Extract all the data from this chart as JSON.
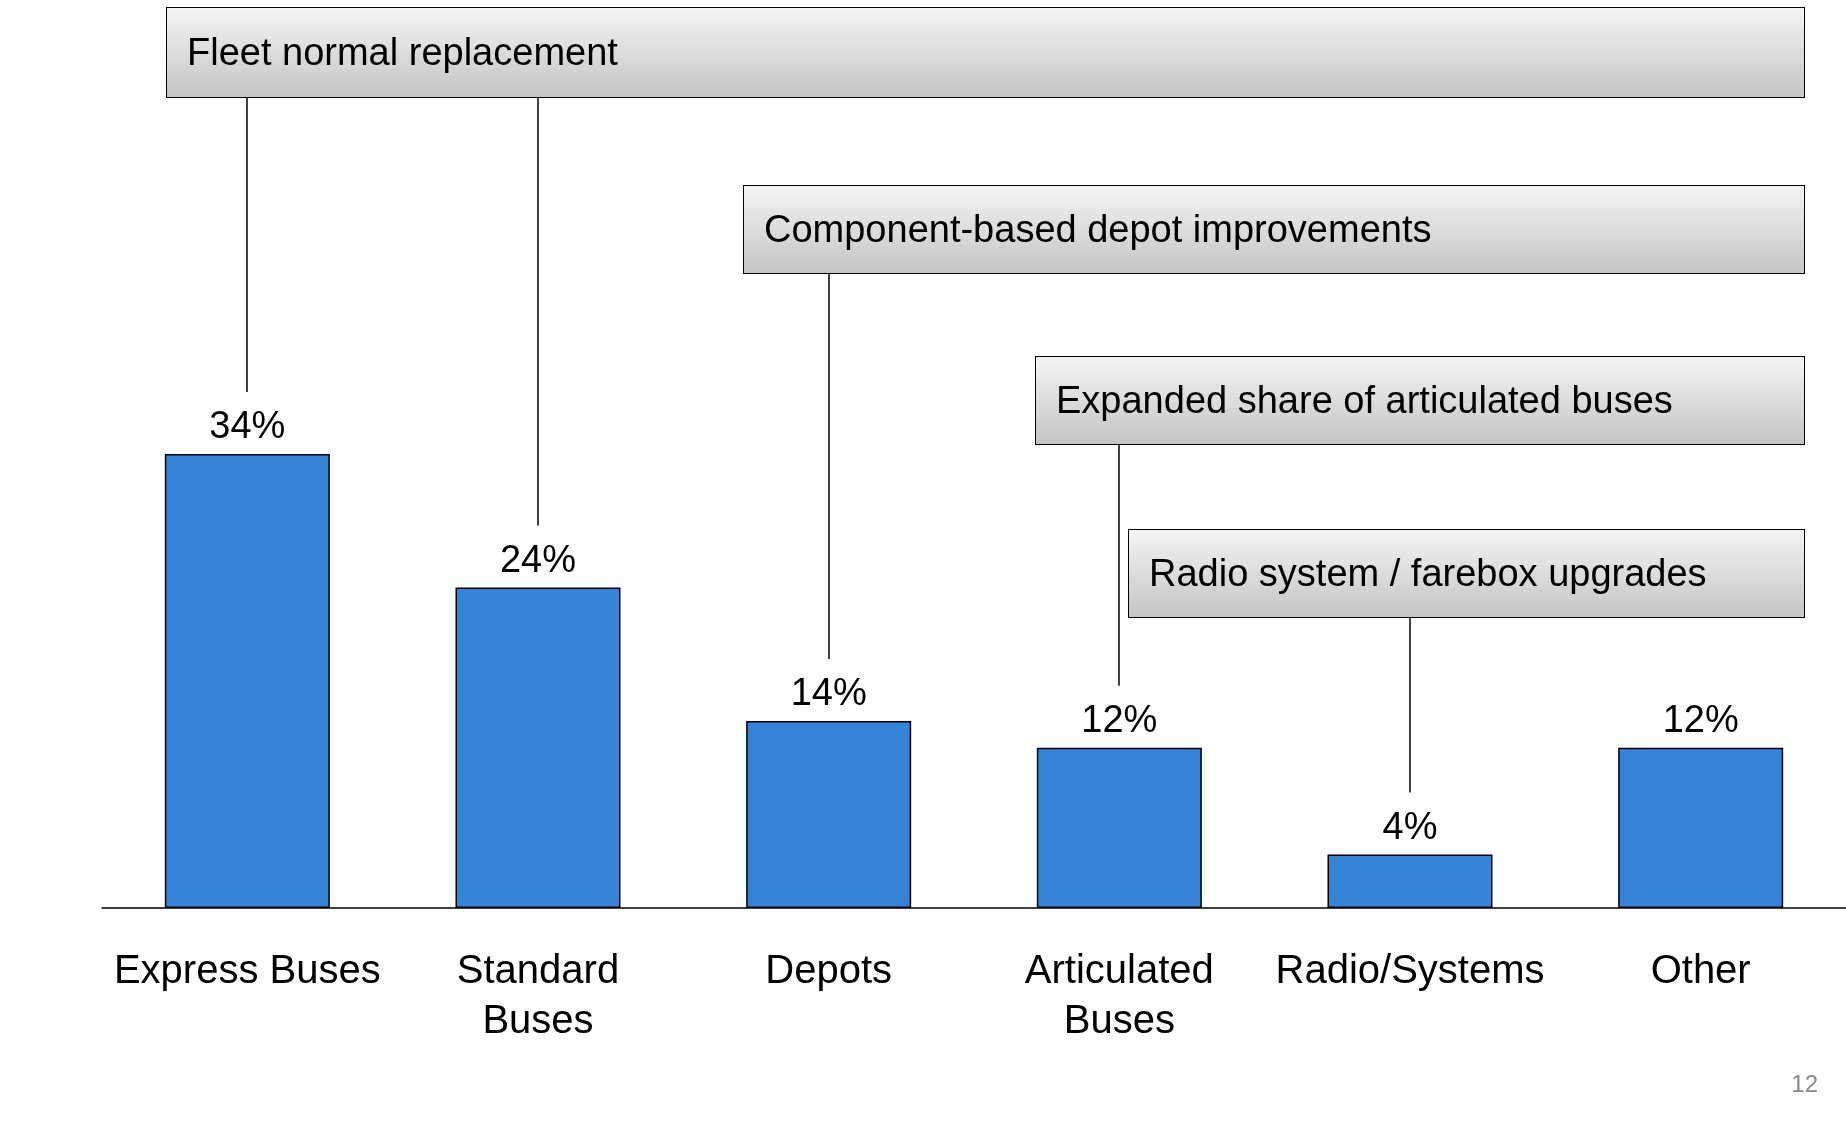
{
  "chart_data": {
    "type": "bar",
    "categories": [
      "Express Buses",
      "Standard Buses",
      "Depots",
      "Articulated Buses",
      "Radio/Systems",
      "Other"
    ],
    "values": [
      34,
      24,
      14,
      12,
      4,
      12
    ],
    "color": "#3584d8",
    "value_labels": [
      "34%",
      "24%",
      "14%",
      "12%",
      "4%",
      "12%"
    ],
    "annotations": [
      "Fleet normal replacement",
      "Component-based depot improvements",
      "Expanded share of articulated buses",
      "Radio system / farebox upgrades",
      "12"
    ]
  }
}
